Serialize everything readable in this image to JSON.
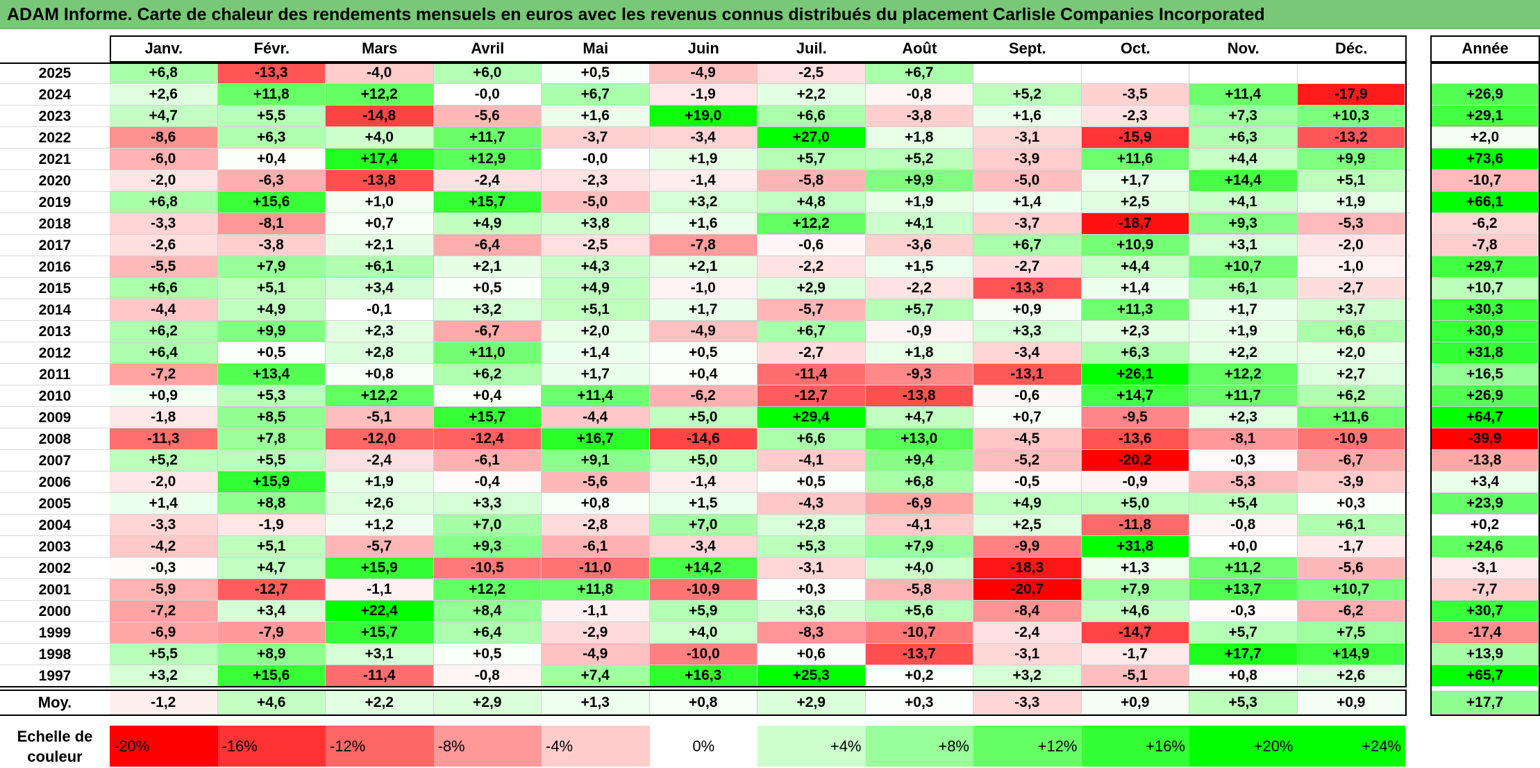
{
  "title": "ADAM Informe. Carte de chaleur des rendements mensuels en euros avec les revenus connus distribués du placement Carlisle Companies Incorporated",
  "colors": {
    "title_bg": "#78c878",
    "negative_max": "#ff0000",
    "neutral": "#ffffff",
    "positive_max": "#00ff00"
  },
  "chart_data": {
    "type": "heatmap",
    "title": "ADAM Informe. Carte de chaleur des rendements mensuels en euros avec les revenus connus distribués du placement Carlisle Companies Incorporated",
    "columns": [
      "Janv.",
      "Févr.",
      "Mars",
      "Avril",
      "Mai",
      "Juin",
      "Juil.",
      "Août",
      "Sept.",
      "Oct.",
      "Nov.",
      "Déc."
    ],
    "year_column": "Année",
    "rows": [
      {
        "label": "2025",
        "values": [
          "+6,8",
          "-13,3",
          "-4,0",
          "+6,0",
          "+0,5",
          "-4,9",
          "-2,5",
          "+6,7",
          "",
          "",
          "",
          ""
        ],
        "year": ""
      },
      {
        "label": "2024",
        "values": [
          "+2,6",
          "+11,8",
          "+12,2",
          "-0,0",
          "+6,7",
          "-1,9",
          "+2,2",
          "-0,8",
          "+5,2",
          "-3,5",
          "+11,4",
          "-17,9"
        ],
        "year": "+26,9"
      },
      {
        "label": "2023",
        "values": [
          "+4,7",
          "+5,5",
          "-14,8",
          "-5,6",
          "+1,6",
          "+19,0",
          "+6,6",
          "-3,8",
          "+1,6",
          "-2,3",
          "+7,3",
          "+10,3"
        ],
        "year": "+29,1"
      },
      {
        "label": "2022",
        "values": [
          "-8,6",
          "+6,3",
          "+4,0",
          "+11,7",
          "-3,7",
          "-3,4",
          "+27,0",
          "+1,8",
          "-3,1",
          "-15,9",
          "+6,3",
          "-13,2"
        ],
        "year": "+2,0"
      },
      {
        "label": "2021",
        "values": [
          "-6,0",
          "+0,4",
          "+17,4",
          "+12,9",
          "-0,0",
          "+1,9",
          "+5,7",
          "+5,2",
          "-3,9",
          "+11,6",
          "+4,4",
          "+9,9"
        ],
        "year": "+73,6"
      },
      {
        "label": "2020",
        "values": [
          "-2,0",
          "-6,3",
          "-13,8",
          "-2,4",
          "-2,3",
          "-1,4",
          "-5,8",
          "+9,9",
          "-5,0",
          "+1,7",
          "+14,4",
          "+5,1"
        ],
        "year": "-10,7"
      },
      {
        "label": "2019",
        "values": [
          "+6,8",
          "+15,6",
          "+1,0",
          "+15,7",
          "-5,0",
          "+3,2",
          "+4,8",
          "+1,9",
          "+1,4",
          "+2,5",
          "+4,1",
          "+1,9"
        ],
        "year": "+66,1"
      },
      {
        "label": "2018",
        "values": [
          "-3,3",
          "-8,1",
          "+0,7",
          "+4,9",
          "+3,8",
          "+1,6",
          "+12,2",
          "+4,1",
          "-3,7",
          "-18,7",
          "+9,3",
          "-5,3"
        ],
        "year": "-6,2"
      },
      {
        "label": "2017",
        "values": [
          "-2,6",
          "-3,8",
          "+2,1",
          "-6,4",
          "-2,5",
          "-7,8",
          "-0,6",
          "-3,6",
          "+6,7",
          "+10,9",
          "+3,1",
          "-2,0"
        ],
        "year": "-7,8"
      },
      {
        "label": "2016",
        "values": [
          "-5,5",
          "+7,9",
          "+6,1",
          "+2,1",
          "+4,3",
          "+2,1",
          "-2,2",
          "+1,5",
          "-2,7",
          "+4,4",
          "+10,7",
          "-1,0"
        ],
        "year": "+29,7"
      },
      {
        "label": "2015",
        "values": [
          "+6,6",
          "+5,1",
          "+3,4",
          "+0,5",
          "+4,9",
          "-1,0",
          "+2,9",
          "-2,2",
          "-13,3",
          "+1,4",
          "+6,1",
          "-2,7"
        ],
        "year": "+10,7"
      },
      {
        "label": "2014",
        "values": [
          "-4,4",
          "+4,9",
          "-0,1",
          "+3,2",
          "+5,1",
          "+1,7",
          "-5,7",
          "+5,7",
          "+0,9",
          "+11,3",
          "+1,7",
          "+3,7"
        ],
        "year": "+30,3"
      },
      {
        "label": "2013",
        "values": [
          "+6,2",
          "+9,9",
          "+2,3",
          "-6,7",
          "+2,0",
          "-4,9",
          "+6,7",
          "-0,9",
          "+3,3",
          "+2,3",
          "+1,9",
          "+6,6"
        ],
        "year": "+30,9"
      },
      {
        "label": "2012",
        "values": [
          "+6,4",
          "+0,5",
          "+2,8",
          "+11,0",
          "+1,4",
          "+0,5",
          "-2,7",
          "+1,8",
          "-3,4",
          "+6,3",
          "+2,2",
          "+2,0"
        ],
        "year": "+31,8"
      },
      {
        "label": "2011",
        "values": [
          "-7,2",
          "+13,4",
          "+0,8",
          "+6,2",
          "+1,7",
          "+0,4",
          "-11,4",
          "-9,3",
          "-13,1",
          "+26,1",
          "+12,2",
          "+2,7"
        ],
        "year": "+16,5"
      },
      {
        "label": "2010",
        "values": [
          "+0,9",
          "+5,3",
          "+12,2",
          "+0,4",
          "+11,4",
          "-6,2",
          "-12,7",
          "-13,8",
          "-0,6",
          "+14,7",
          "+11,7",
          "+6,2"
        ],
        "year": "+26,9"
      },
      {
        "label": "2009",
        "values": [
          "-1,8",
          "+8,5",
          "-5,1",
          "+15,7",
          "-4,4",
          "+5,0",
          "+29,4",
          "+4,7",
          "+0,7",
          "-9,5",
          "+2,3",
          "+11,6"
        ],
        "year": "+64,7"
      },
      {
        "label": "2008",
        "values": [
          "-11,3",
          "+7,8",
          "-12,0",
          "-12,4",
          "+16,7",
          "-14,6",
          "+6,6",
          "+13,0",
          "-4,5",
          "-13,6",
          "-8,1",
          "-10,9"
        ],
        "year": "-39,9"
      },
      {
        "label": "2007",
        "values": [
          "+5,2",
          "+5,5",
          "-2,4",
          "-6,1",
          "+9,1",
          "+5,0",
          "-4,1",
          "+9,4",
          "-5,2",
          "-20,2",
          "-0,3",
          "-6,7"
        ],
        "year": "-13,8"
      },
      {
        "label": "2006",
        "values": [
          "-2,0",
          "+15,9",
          "+1,9",
          "-0,4",
          "-5,6",
          "-1,4",
          "+0,5",
          "+6,8",
          "-0,5",
          "-0,9",
          "-5,3",
          "-3,9"
        ],
        "year": "+3,4"
      },
      {
        "label": "2005",
        "values": [
          "+1,4",
          "+8,8",
          "+2,6",
          "+3,3",
          "+0,8",
          "+1,5",
          "-4,3",
          "-6,9",
          "+4,9",
          "+5,0",
          "+5,4",
          "+0,3"
        ],
        "year": "+23,9"
      },
      {
        "label": "2004",
        "values": [
          "-3,3",
          "-1,9",
          "+1,2",
          "+7,0",
          "-2,8",
          "+7,0",
          "+2,8",
          "-4,1",
          "+2,5",
          "-11,8",
          "-0,8",
          "+6,1"
        ],
        "year": "+0,2"
      },
      {
        "label": "2003",
        "values": [
          "-4,2",
          "+5,1",
          "-5,7",
          "+9,3",
          "-6,1",
          "-3,4",
          "+5,3",
          "+7,9",
          "-9,9",
          "+31,8",
          "+0,0",
          "-1,7"
        ],
        "year": "+24,6"
      },
      {
        "label": "2002",
        "values": [
          "-0,3",
          "+4,7",
          "+15,9",
          "-10,5",
          "-11,0",
          "+14,2",
          "-3,1",
          "+4,0",
          "-18,3",
          "+1,3",
          "+11,2",
          "-5,6"
        ],
        "year": "-3,1"
      },
      {
        "label": "2001",
        "values": [
          "-5,9",
          "-12,7",
          "-1,1",
          "+12,2",
          "+11,8",
          "-10,9",
          "+0,3",
          "-5,8",
          "-20,7",
          "+7,9",
          "+13,7",
          "+10,7"
        ],
        "year": "-7,7"
      },
      {
        "label": "2000",
        "values": [
          "-7,2",
          "+3,4",
          "+22,4",
          "+8,4",
          "-1,1",
          "+5,9",
          "+3,6",
          "+5,6",
          "-8,4",
          "+4,6",
          "-0,3",
          "-6,2"
        ],
        "year": "+30,7"
      },
      {
        "label": "1999",
        "values": [
          "-6,9",
          "-7,9",
          "+15,7",
          "+6,4",
          "-2,9",
          "+4,0",
          "-8,3",
          "-10,7",
          "-2,4",
          "-14,7",
          "+5,7",
          "+7,5"
        ],
        "year": "-17,4"
      },
      {
        "label": "1998",
        "values": [
          "+5,5",
          "+8,9",
          "+3,1",
          "+0,5",
          "-4,9",
          "-10,0",
          "+0,6",
          "-13,7",
          "-3,1",
          "-1,7",
          "+17,7",
          "+14,9"
        ],
        "year": "+13,9"
      },
      {
        "label": "1997",
        "values": [
          "+3,2",
          "+15,6",
          "-11,4",
          "-0,8",
          "+7,4",
          "+16,3",
          "+25,3",
          "+0,2",
          "+3,2",
          "-5,1",
          "+0,8",
          "+2,6"
        ],
        "year": "+65,7"
      }
    ],
    "average": {
      "label": "Moy.",
      "values": [
        "-1,2",
        "+4,6",
        "+2,2",
        "+2,9",
        "+1,3",
        "+0,8",
        "+2,9",
        "+0,3",
        "-3,3",
        "+0,9",
        "+5,3",
        "+0,9"
      ],
      "year": "+17,7"
    },
    "color_scale": {
      "label": "Echelle de couleur",
      "stops": [
        "-20%",
        "-16%",
        "-12%",
        "-8%",
        "-4%",
        "0%",
        "+4%",
        "+8%",
        "+12%",
        "+16%",
        "+20%",
        "+24%"
      ],
      "range": [
        -20,
        24
      ]
    }
  }
}
